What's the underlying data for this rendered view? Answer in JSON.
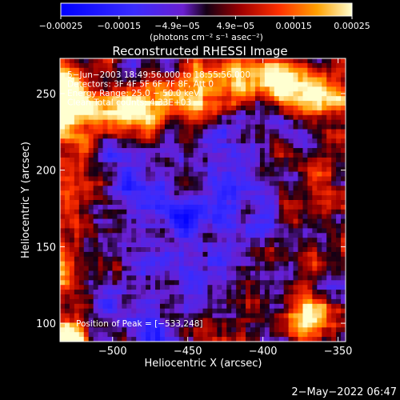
{
  "chart_data": {
    "type": "heatmap",
    "title": "Reconstructed RHESSI Image",
    "xlabel": "Heliocentric X (arcsec)",
    "ylabel": "Heliocentric Y (arcsec)",
    "xlim": [
      -535,
      -345
    ],
    "ylim": [
      88,
      273
    ],
    "x_ticks": [
      -500,
      -450,
      -400,
      -350
    ],
    "x_tick_labels": [
      "−500",
      "−450",
      "−400",
      "−350"
    ],
    "y_ticks": [
      100,
      150,
      200,
      250
    ],
    "y_tick_labels": [
      "100",
      "150",
      "200",
      "250"
    ],
    "colorbar": {
      "range": [
        -0.00025,
        0.00025
      ],
      "tick_labels": [
        "−0.00025",
        "−0.00015",
        "−4.9e−05",
        "4.9e−05",
        "0.00015",
        "0.00025"
      ],
      "unit_label": "(photons cm⁻² s⁻¹ asec⁻²)"
    },
    "annotations": [
      "5−Jun−2003 18:49:56.000 to 18:55:56.000",
      "Detectors: 3F 4F 5F 6F 7F 8F, Att 0",
      "Energy Range: 25.0 − 50.0 keV",
      "Clean    Total counts: 4.33E+03"
    ],
    "peak_label": "Position of Peak = [−533,248]",
    "peak_position": [
      -533,
      248
    ],
    "footer_date": "2−May−2022 06:47"
  }
}
